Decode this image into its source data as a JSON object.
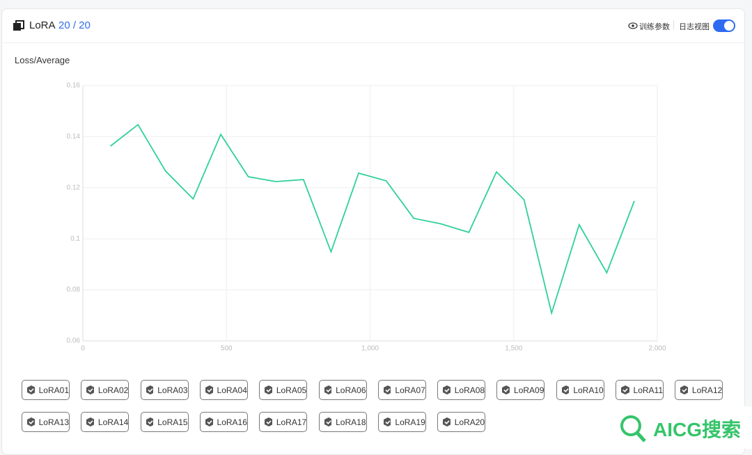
{
  "header": {
    "title": "LoRA",
    "count": "20 / 20",
    "params_link": "训练参数",
    "log_view": "日志视图"
  },
  "chart_data": {
    "type": "line",
    "title": "Loss/Average",
    "x": [
      96,
      192,
      288,
      384,
      480,
      576,
      672,
      768,
      864,
      960,
      1056,
      1152,
      1248,
      1344,
      1440,
      1536,
      1632,
      1728,
      1824,
      1920
    ],
    "series": [
      {
        "name": "Loss/Average",
        "color": "#2fd09a",
        "values": [
          0.1363,
          0.1447,
          0.1265,
          0.1156,
          0.1409,
          0.1243,
          0.1224,
          0.1232,
          0.0949,
          0.1257,
          0.1227,
          0.108,
          0.1058,
          0.1025,
          0.1262,
          0.1153,
          0.0709,
          0.1055,
          0.0867,
          0.1148
        ]
      }
    ],
    "xlim": [
      0,
      2000
    ],
    "xticks": [
      0,
      500,
      {
        "value": 1000,
        "label": "1,000"
      },
      {
        "value": 1500,
        "label": "1,500"
      },
      {
        "value": 2000,
        "label": "2,000"
      }
    ],
    "ylim": [
      0.06,
      0.16
    ],
    "yticks": [
      0.06,
      0.08,
      0.1,
      0.12,
      0.14,
      0.16
    ],
    "grid": true
  },
  "models": [
    "LoRA01",
    "LoRA02",
    "LoRA03",
    "LoRA04",
    "LoRA05",
    "LoRA06",
    "LoRA07",
    "LoRA08",
    "LoRA09",
    "LoRA10",
    "LoRA11",
    "LoRA12",
    "LoRA13",
    "LoRA14",
    "LoRA15",
    "LoRA16",
    "LoRA17",
    "LoRA18",
    "LoRA19",
    "LoRA20"
  ],
  "watermark": "AICG搜索"
}
